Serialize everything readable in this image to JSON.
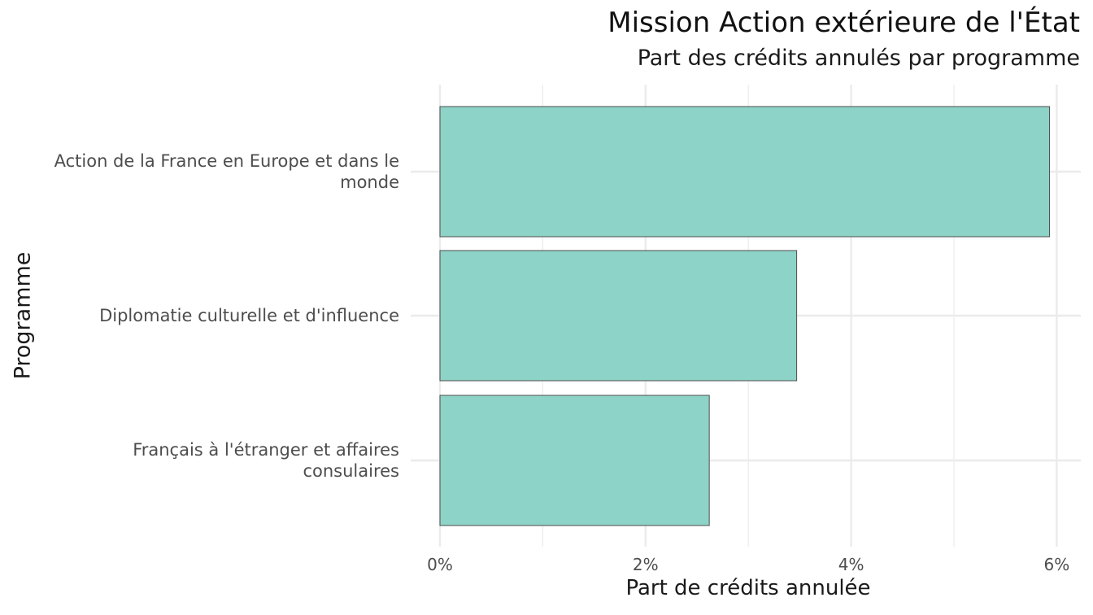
{
  "chart_data": {
    "type": "bar",
    "orientation": "horizontal",
    "title": "Mission Action extérieure de l'État",
    "subtitle": "Part des crédits annulés par programme",
    "xlabel": "Part de crédits annulée",
    "ylabel": "Programme",
    "categories": [
      "Action de la France en Europe et dans le monde",
      "Diplomatie culturelle et d'influence",
      "Français à l'étranger et affaires consulaires"
    ],
    "values": [
      5.93,
      3.47,
      2.62
    ],
    "value_unit": "%",
    "xlim": [
      0,
      6.2
    ],
    "xticks": [
      0,
      2,
      4,
      6
    ],
    "xtick_labels": [
      "0%",
      "2%",
      "4%",
      "6%"
    ],
    "grid": true,
    "legend": "none",
    "colors": {
      "bar_fill": "#8ed3c7",
      "bar_stroke": "#4d4d4d",
      "grid": "#ebebeb"
    }
  }
}
